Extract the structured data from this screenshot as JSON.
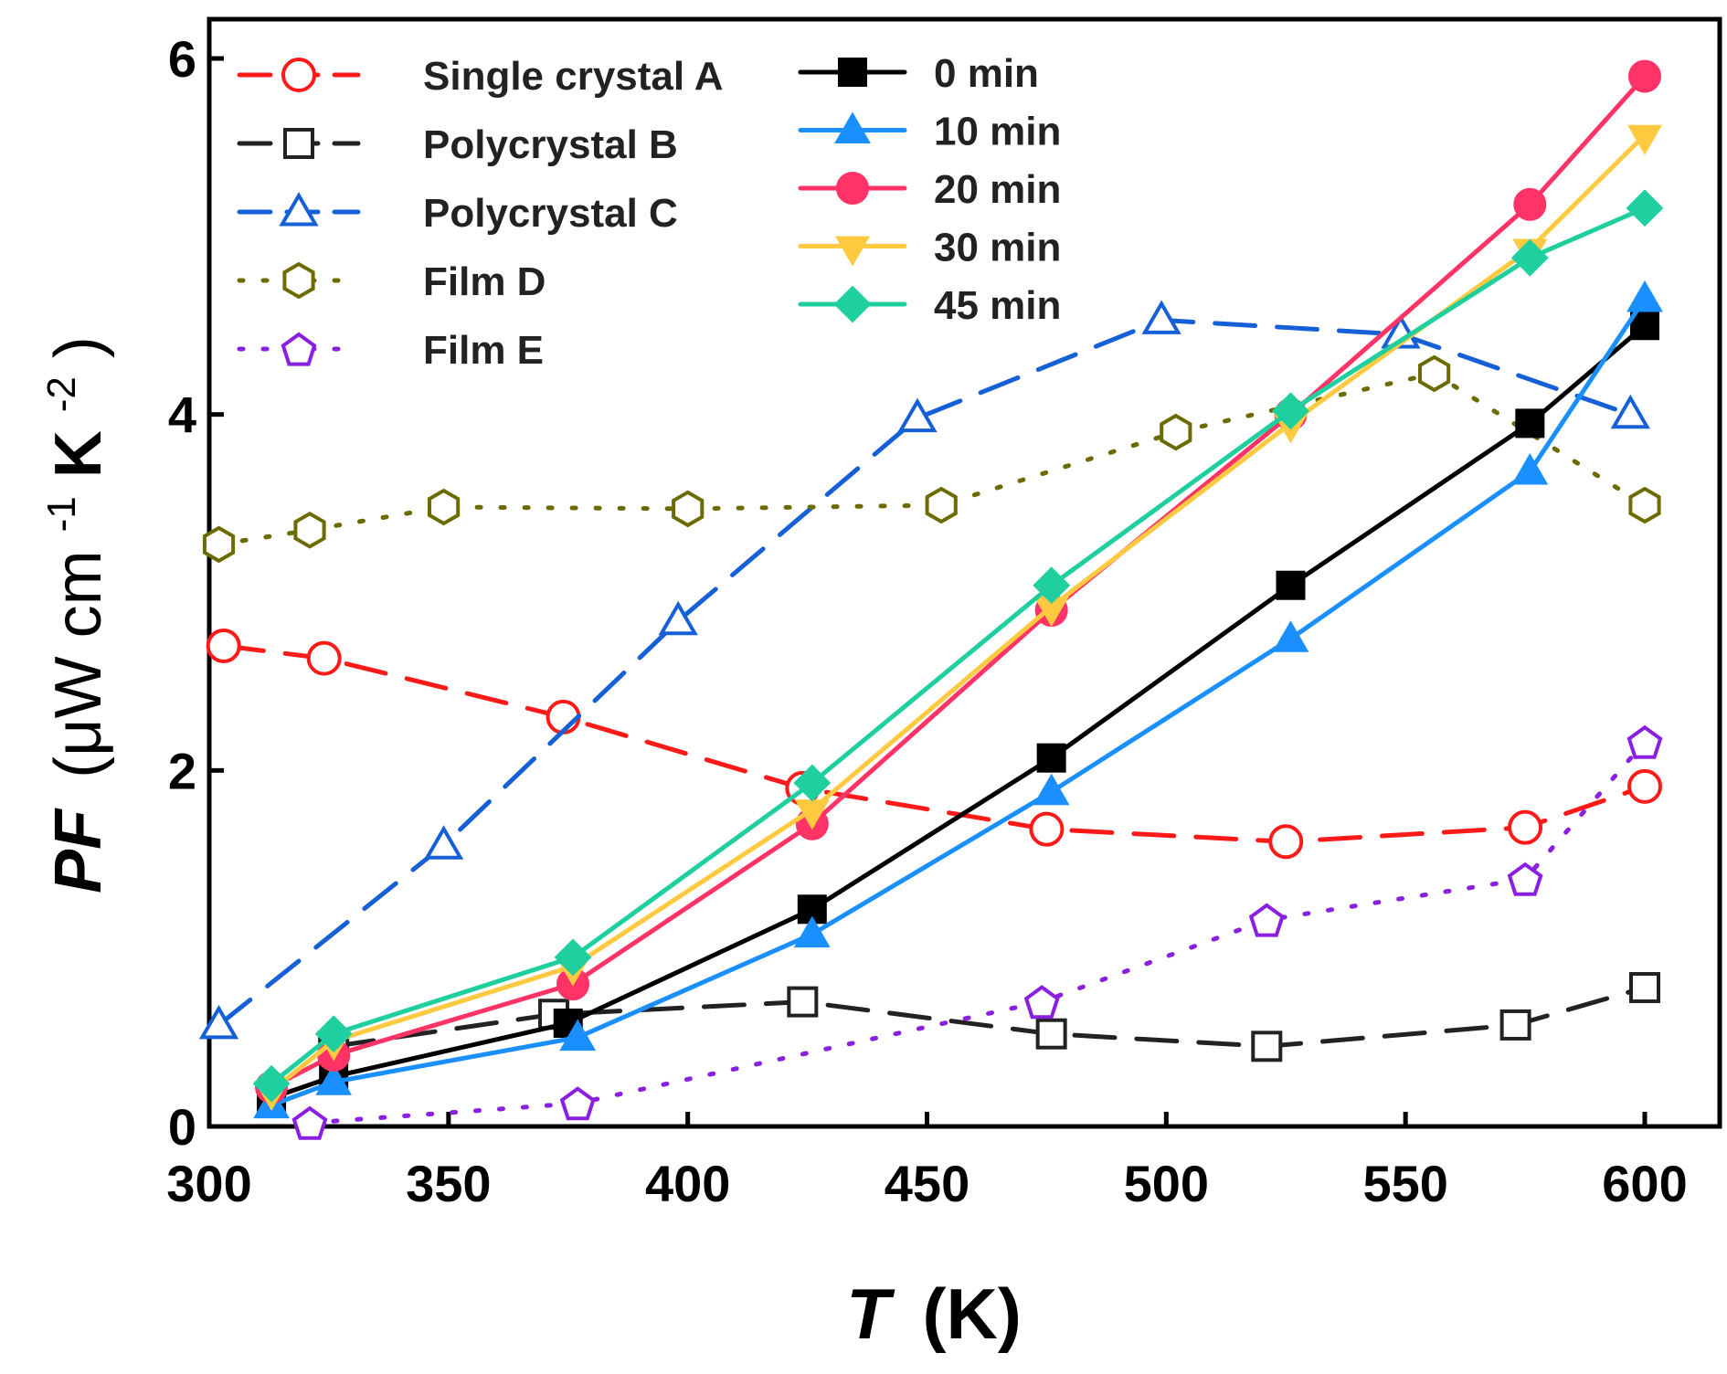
{
  "chart_data": {
    "type": "line",
    "title": "",
    "xlabel": "T (K)",
    "xlabel_parts": {
      "var": "T",
      "unit": "(K)"
    },
    "ylabel": "PF (μW cm-1 K-2)",
    "ylabel_parts": {
      "var": "PF",
      "pre": "(μW cm",
      "exp1": "-1",
      "mid": " K",
      "exp2": "-2",
      "post": ")"
    },
    "xlim": [
      300,
      600
    ],
    "ylim": [
      0,
      6
    ],
    "xticks": [
      "300",
      "350",
      "400",
      "450",
      "500",
      "550",
      "600"
    ],
    "yticks": [
      "0",
      "2",
      "4",
      "6"
    ],
    "grid": false,
    "series": [
      {
        "name": "Single crystal A",
        "color": "#ff1a1a",
        "marker": "circle-open",
        "dash": "dashed",
        "x": [
          303,
          324,
          374,
          424,
          475,
          525,
          575,
          600
        ],
        "y": [
          2.7,
          2.63,
          2.3,
          1.9,
          1.67,
          1.6,
          1.68,
          1.91
        ]
      },
      {
        "name": "Polycrystal B",
        "color": "#222222",
        "marker": "square-open",
        "dash": "dashed",
        "x": [
          326,
          372,
          424,
          476,
          521,
          573,
          600
        ],
        "y": [
          0.45,
          0.63,
          0.7,
          0.52,
          0.45,
          0.57,
          0.78
        ]
      },
      {
        "name": "Polycrystal C",
        "color": "#1560d6",
        "marker": "triangle-open",
        "dash": "dashed",
        "x": [
          302,
          349,
          398,
          448,
          499,
          549,
          597
        ],
        "y": [
          0.57,
          1.58,
          2.84,
          3.98,
          4.53,
          4.45,
          4.0
        ]
      },
      {
        "name": "Film D",
        "color": "#6b6b00",
        "marker": "hexagon-open",
        "dash": "dotted",
        "x": [
          302,
          321,
          349,
          400,
          453,
          502,
          556,
          600
        ],
        "y": [
          3.27,
          3.35,
          3.48,
          3.47,
          3.49,
          3.9,
          4.23,
          3.49
        ]
      },
      {
        "name": "Film E",
        "color": "#8a1fe0",
        "marker": "pentagon-open",
        "dash": "dotted",
        "x": [
          321,
          377,
          474,
          521,
          575,
          600
        ],
        "y": [
          0.02,
          0.13,
          0.7,
          1.16,
          1.39,
          2.16
        ]
      },
      {
        "name": "0 min",
        "color": "#000000",
        "marker": "square-filled",
        "dash": "solid",
        "x": [
          313,
          326,
          375,
          426,
          476,
          526,
          576,
          600
        ],
        "y": [
          0.16,
          0.28,
          0.58,
          1.22,
          2.07,
          3.04,
          3.95,
          4.5
        ]
      },
      {
        "name": "10 min",
        "color": "#1a8fff",
        "marker": "triangle-filled",
        "dash": "solid",
        "x": [
          313,
          326,
          377,
          426,
          476,
          526,
          576,
          600
        ],
        "y": [
          0.12,
          0.25,
          0.5,
          1.08,
          1.88,
          2.74,
          3.68,
          4.65
        ]
      },
      {
        "name": "20 min",
        "color": "#ff3366",
        "marker": "circle-filled",
        "dash": "solid",
        "x": [
          313,
          326,
          376,
          426,
          476,
          526,
          576,
          600
        ],
        "y": [
          0.22,
          0.4,
          0.8,
          1.7,
          2.9,
          4.0,
          5.18,
          5.9
        ]
      },
      {
        "name": "30 min",
        "color": "#ffc940",
        "marker": "triangle-down-filled",
        "dash": "solid",
        "x": [
          313,
          326,
          376,
          426,
          476,
          526,
          576,
          600
        ],
        "y": [
          0.2,
          0.48,
          0.9,
          1.78,
          2.92,
          3.95,
          4.93,
          5.57
        ]
      },
      {
        "name": "45 min",
        "color": "#1fcf9f",
        "marker": "diamond-filled",
        "dash": "solid",
        "x": [
          313,
          326,
          376,
          426,
          476,
          526,
          576,
          600
        ],
        "y": [
          0.24,
          0.52,
          0.95,
          1.93,
          3.04,
          4.02,
          4.88,
          5.16
        ]
      }
    ],
    "legend": [
      {
        "placement": "top-left",
        "entries": [
          "Single crystal A",
          "Polycrystal B",
          "Polycrystal C",
          "Film D",
          "Film E"
        ]
      },
      {
        "placement": "top-center",
        "entries": [
          "0 min",
          "10 min",
          "20 min",
          "30 min",
          "45 min"
        ]
      }
    ]
  }
}
